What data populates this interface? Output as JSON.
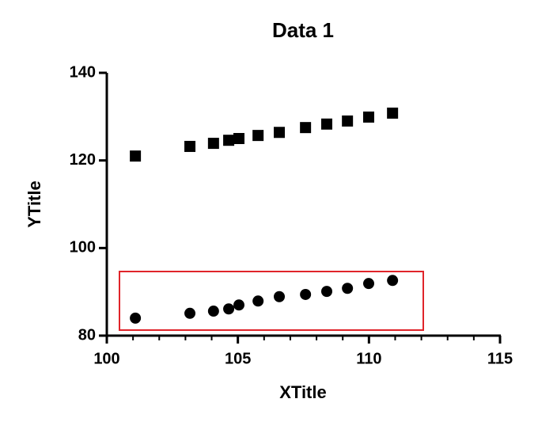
{
  "chart_data": {
    "type": "scatter",
    "title": "Data 1",
    "x_label": "XTitle",
    "y_label": "YTitle",
    "series": [
      {
        "marker": "square",
        "color": "#000000",
        "x": [
          101.09,
          103.17,
          104.07,
          104.65,
          105.04,
          105.77,
          106.58,
          107.58,
          108.39,
          109.18,
          109.99,
          110.9
        ],
        "values": [
          121.0,
          123.2,
          123.9,
          124.6,
          125.0,
          125.7,
          126.4,
          127.5,
          128.3,
          129.0,
          129.9,
          130.8
        ]
      },
      {
        "marker": "circle",
        "color": "#000000",
        "x": [
          101.09,
          103.17,
          104.07,
          104.65,
          105.04,
          105.77,
          106.58,
          107.58,
          108.39,
          109.18,
          109.99,
          110.9
        ],
        "values": [
          84.0,
          85.1,
          85.6,
          86.1,
          87.0,
          87.9,
          88.9,
          89.4,
          90.1,
          90.8,
          91.9,
          92.6
        ]
      }
    ],
    "xlim": [
      100,
      115
    ],
    "xticks": [
      100,
      105,
      110,
      115
    ],
    "xminorticks": [
      101,
      102,
      103,
      104,
      106,
      107,
      108,
      109,
      111,
      112,
      113,
      114
    ],
    "ylim": [
      80,
      140
    ],
    "yticks": [
      80,
      100,
      120,
      140
    ],
    "grid": false
  }
}
